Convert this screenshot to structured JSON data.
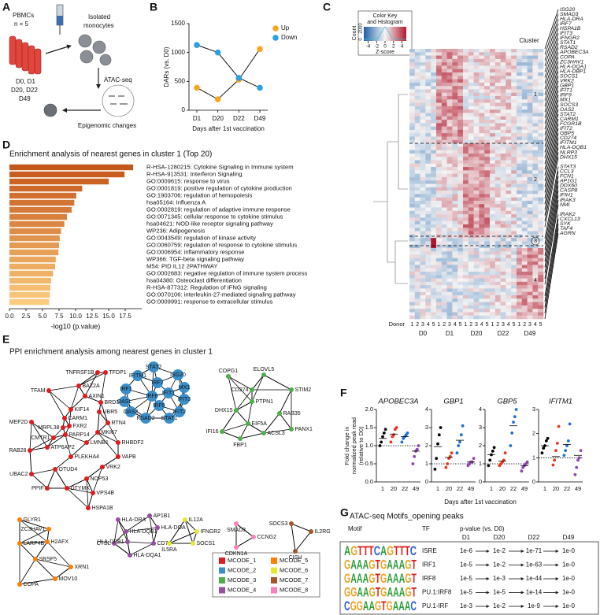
{
  "panel_labels": [
    "A",
    "B",
    "C",
    "D",
    "E",
    "F",
    "G"
  ],
  "panel_a": {
    "pbmcs": "PBMCs",
    "n": "n = 5",
    "days1": "D0, D1",
    "days2": "D20, D22",
    "days3": "D49",
    "isolated": "Isolated",
    "monocytes": "monocytes",
    "assay": "ATAC-seq",
    "outcome": "Epigenomic changes"
  },
  "chart_data": [
    {
      "type": "line",
      "categories": [
        "D1",
        "D20",
        "D22",
        "D49"
      ],
      "series": [
        {
          "name": "Up",
          "color": "#f5a623",
          "values": [
            390,
            190,
            530,
            1060
          ]
        },
        {
          "name": "Down",
          "color": "#2b9fe0",
          "values": [
            1130,
            1000,
            560,
            390
          ]
        }
      ],
      "ylim": [
        0,
        1500
      ],
      "yticks": [
        0,
        500,
        1000,
        1500
      ],
      "ylabel": "DARs (vs. D0)",
      "xlabel": "Days after 1st vaccination",
      "legend": "upper right"
    },
    {
      "type": "hbar",
      "title": "Enrichment analysis of nearest genes in cluster 1 (Top 20)",
      "categories": [
        "R-HSA-1280215: Cytokine Signaling in Immune system",
        "R-HSA-913531: Interferon Signaling",
        "GO:0009615: response to virus",
        "GO:0001819: positive regulation of cytokine production",
        "GO:1903706: regulation of hemopoiesis",
        "hsa05164: Influenza A",
        "GO:0002819: regulation of adaptive immune response",
        "GO:0071345: cellular response to cytokine stimulus",
        "hsa04621: NOD-like receptor signaling pathway",
        "WP236: Adipogenesis",
        "GO:0043549: regulation of kinase activity",
        "GO:0060759: regulation of response to cytokine stimulus",
        "GO:0006954: inflammatory response",
        "WP366: TGF-beta signaling pathway",
        "M54: PID IL12 2PATHWAY",
        "GO:0002683: negative regulation of immune system process",
        "hsa04380: Osteoclast differentiation",
        "R-HSA-877312: Regulation of IFNG signaling",
        "GO:0070106: interleukin-27-mediated signaling pathway",
        "GO:0009991: response to extracellular stimulus"
      ],
      "values": [
        18.7,
        17.4,
        15.0,
        11.0,
        10.1,
        9.8,
        9.4,
        8.7,
        8.3,
        7.8,
        7.6,
        7.5,
        7.4,
        7.0,
        6.9,
        6.6,
        6.3,
        6.2,
        6.1,
        6.0
      ],
      "color_range": [
        "#c4571a",
        "#fbca7c"
      ],
      "highlight": [
        1,
        2
      ],
      "highlight_color": "#e8171b",
      "xlim": [
        0,
        20
      ],
      "xticks": [
        {
          "value": 0,
          "label": "0.0"
        },
        2.5,
        {
          "value": 5,
          "label": "5.0"
        },
        7.5,
        {
          "value": 10,
          "label": "10.0"
        },
        12.5,
        {
          "value": 15,
          "label": "15.0"
        },
        17.5
      ],
      "xlabel": "-log10 (p.value)"
    },
    {
      "type": "dot",
      "title": "APOBEC3A",
      "categories": [
        "1",
        "20",
        "22",
        "49"
      ],
      "colors": [
        "#000000",
        "#e8351d",
        "#1f6fd1",
        "#8e44ad"
      ],
      "values": [
        [
          1.0,
          1.1,
          1.25,
          1.35,
          1.45
        ],
        [
          1.1,
          1.25,
          1.3,
          1.45,
          1.5
        ],
        [
          1.1,
          1.2,
          1.25,
          1.3,
          1.35
        ],
        [
          0.5,
          0.7,
          0.85,
          0.9,
          1.0
        ]
      ],
      "means": [
        1.2,
        1.32,
        1.25,
        0.85
      ],
      "reference": 1,
      "ylim": [
        0,
        2
      ],
      "yticks": [
        {
          "value": 0,
          "label": "0.0"
        },
        0.5,
        {
          "value": 1,
          "label": "1.0"
        },
        1.5,
        {
          "value": 2,
          "label": "2.0"
        }
      ]
    },
    {
      "type": "dot",
      "title": "GBP1",
      "categories": [
        "1",
        "20",
        "22",
        "49"
      ],
      "colors": [
        "#000000",
        "#e8351d",
        "#1f6fd1",
        "#8e44ad"
      ],
      "values": [
        [
          0.7,
          1.3,
          2.1,
          2.6,
          3.0
        ],
        [
          0.8,
          1.0,
          1.3,
          1.4,
          1.6
        ],
        [
          1.6,
          2.0,
          2.2,
          2.6,
          3.1
        ],
        [
          0.9,
          1.0,
          1.1,
          1.1,
          1.3
        ]
      ],
      "means": [
        1.95,
        1.35,
        2.3,
        1.1
      ],
      "reference": 1,
      "ylim": [
        0,
        4
      ],
      "yticks": [
        0,
        1,
        2,
        3,
        4
      ]
    },
    {
      "type": "dot",
      "title": "GBP5",
      "categories": [
        "1",
        "20",
        "22",
        "49"
      ],
      "colors": [
        "#000000",
        "#e8351d",
        "#1f6fd1",
        "#8e44ad"
      ],
      "values": [
        [
          0.9,
          1.2,
          1.5,
          1.7,
          1.9
        ],
        [
          0.9,
          1.0,
          1.1,
          1.2,
          1.6
        ],
        [
          2.0,
          2.7,
          3.3,
          3.6,
          4.0
        ],
        [
          0.6,
          0.8,
          0.9,
          1.0,
          1.1
        ]
      ],
      "means": [
        1.5,
        1.15,
        3.1,
        0.9
      ],
      "reference": 1,
      "ylim": [
        0,
        4
      ],
      "yticks": [
        0,
        1,
        2,
        3,
        4
      ]
    },
    {
      "type": "dot",
      "title": "IFITM1",
      "categories": [
        "1",
        "20",
        "22",
        "49"
      ],
      "colors": [
        "#000000",
        "#e8351d",
        "#1f6fd1",
        "#8e44ad"
      ],
      "values": [
        [
          1.2,
          1.4,
          1.5,
          1.7,
          1.8
        ],
        [
          0.7,
          0.9,
          1.3,
          1.6,
          2.3
        ],
        [
          1.1,
          1.3,
          1.5,
          1.7,
          2.4
        ],
        [
          0.3,
          0.6,
          0.9,
          1.0,
          1.3
        ]
      ],
      "means": [
        1.5,
        1.05,
        1.55,
        1.1
      ],
      "reference": 1,
      "ylim": [
        0,
        3
      ],
      "yticks": [
        0,
        1,
        2,
        3
      ]
    }
  ],
  "panel_f": {
    "ylabel": [
      "Fold change in",
      "normalized peak read",
      "(relative to D0)"
    ],
    "xlabel": "Days after 1st vaccination"
  },
  "panel_c": {
    "key_title": [
      "Color Key",
      "and Histogram"
    ],
    "count_label": "Count",
    "count_ticks": [
      0,
      2000
    ],
    "key_ticks": [
      -4,
      -2,
      0,
      2,
      4
    ],
    "key_lim": [
      -5,
      5
    ],
    "key_label": "Z-score",
    "cluster_label": "Cluster",
    "clusters": [
      1,
      2,
      3,
      4
    ],
    "genes": [
      "ISG20",
      "SMAD3",
      "HLA-DRA",
      "IRF7",
      "HSPA1B",
      "IFIT3",
      "IFNGR2",
      "STAT1",
      "RSAD2",
      "APOBEC3A",
      "COPA",
      "ZC3HAV1",
      "HLA-DQA1",
      "HLA-DBP1",
      "SOCS1",
      "VRK2",
      "GBP1",
      "IFIT1",
      "IRF9",
      "MX1",
      "SOCS3",
      "OAS2",
      "STAT2",
      "CARM1",
      "FCGR1B",
      "IFIT2",
      "GBP5",
      "CD274",
      "IFITM1",
      "HLA-DQB1",
      "NLRP3",
      "DHX15",
      "STAT3",
      "CCL3",
      "FCN1",
      "AP1G1",
      "DDX60",
      "CASP8",
      "IFIH1",
      "IRAK3",
      "NMI",
      "IRAK2",
      "CXCL13",
      "SYK",
      "TAF4",
      "AGRN"
    ],
    "donor_label": "Donor",
    "donors": [
      1,
      2,
      3,
      4,
      5
    ],
    "days": [
      "D0",
      "D1",
      "D20",
      "D22",
      "D49"
    ]
  },
  "panel_e": {
    "title": "PPI enrichment analysis among nearest genes in cluster 1",
    "modules": [
      {
        "name": "MCODE_1",
        "color": "#e41a1c",
        "nodes": [
          "TNFRSF1B",
          "TFDP1",
          "TFAM",
          "BAZ2A",
          "AXIN1",
          "BRD3",
          "KIF14",
          "UBR5",
          "CARM1",
          "MEF2D",
          "MRPL38",
          "FXR2",
          "RTN4",
          "PARP14",
          "CMTR1",
          "MKI67",
          "LMNB1",
          "ATP6AP2",
          "RHBDF2",
          "RAB28",
          "PLEKHA4",
          "VAPB",
          "OTUD4",
          "VRK2",
          "UBAC2",
          "NOP53",
          "PPIF",
          "DTYMK",
          "VPS4B",
          "HSPA1B"
        ]
      },
      {
        "name": "MCODE_2",
        "color": "#3a8fcb",
        "nodes": [
          "STAT2",
          "ISG20",
          "IFITM1",
          "IRF7",
          "MX1",
          "IRF1",
          "IFIT1",
          "IRF8",
          "IFIT3",
          "OASL",
          "IRF9",
          "OAS2",
          "IFIT2",
          "RSAD2",
          "STAT1"
        ]
      },
      {
        "name": "MCODE_3",
        "color": "#4daf4a",
        "nodes": [
          "COPG1",
          "ELOVL5",
          "CD274",
          "STIM2",
          "PTPN1",
          "DHX15",
          "RAB35",
          "EIF5A",
          "PANX1",
          "IFI16",
          "FBP1",
          "ACSL3"
        ]
      },
      {
        "name": "MCODE_4",
        "color": "#984ea3",
        "nodes": [
          "HLA-DRA",
          "AP1B1",
          "HLA-DOA",
          "HLA-DQB1",
          "CTSL",
          "CD74",
          "HLA-DPB1",
          "HLA-DQA1"
        ]
      },
      {
        "name": "MCODE_5",
        "color": "#ff7f00",
        "nodes": [
          "GLYR1",
          "ZC3HAV1",
          "LARP4B",
          "H2AFX",
          "SRSF5",
          "XRN1",
          "COPA",
          "MOV10"
        ]
      },
      {
        "name": "MCODE_6",
        "color": "#e8e830",
        "nodes": [
          "IL12A",
          "IFNGR2",
          "IL5RA",
          "SOCS1"
        ]
      },
      {
        "name": "MCODE_7",
        "color": "#a65628",
        "nodes": [
          "SOCS3",
          "IL2RG",
          "CISH"
        ]
      },
      {
        "name": "MCODE_8",
        "color": "#f781bf",
        "nodes": [
          "SMAD3",
          "CCNG2",
          "CDKN1A"
        ]
      }
    ]
  },
  "panel_g": {
    "title": "ATAC-seq Motifs_opening peaks",
    "headers": {
      "motif": "Motif",
      "tf": "TF",
      "pvalue": "p-value (vs. D0)"
    },
    "days": [
      "D1",
      "D20",
      "D22",
      "D49"
    ],
    "rows": [
      {
        "motif": "AGTTTCAGTTTC",
        "tf": "ISRE",
        "pvalues": [
          "1e-6",
          "1e-2",
          "1e-71",
          "1e-0"
        ]
      },
      {
        "motif": "GAAAGTGAAAGT",
        "tf": "IRF1",
        "pvalues": [
          "1e-5",
          "1e-2",
          "1e-63",
          "1e-0"
        ]
      },
      {
        "motif": "GAAAGTGAAAGT",
        "tf": "IRF8",
        "pvalues": [
          "1e-5",
          "1e-3",
          "1e-44",
          "1e-0"
        ]
      },
      {
        "motif": "GGAAGTGAAAGT",
        "tf": "PU.1:IRF8",
        "pvalues": [
          "1e-5",
          "1e-5",
          "1e-14",
          "1e-0"
        ]
      },
      {
        "motif": "CGGAAGTGAAAC",
        "tf": "PU.1-IRF",
        "pvalues": [
          "1e-3",
          "1e-2",
          "1e-9",
          "1e-0"
        ]
      }
    ]
  }
}
